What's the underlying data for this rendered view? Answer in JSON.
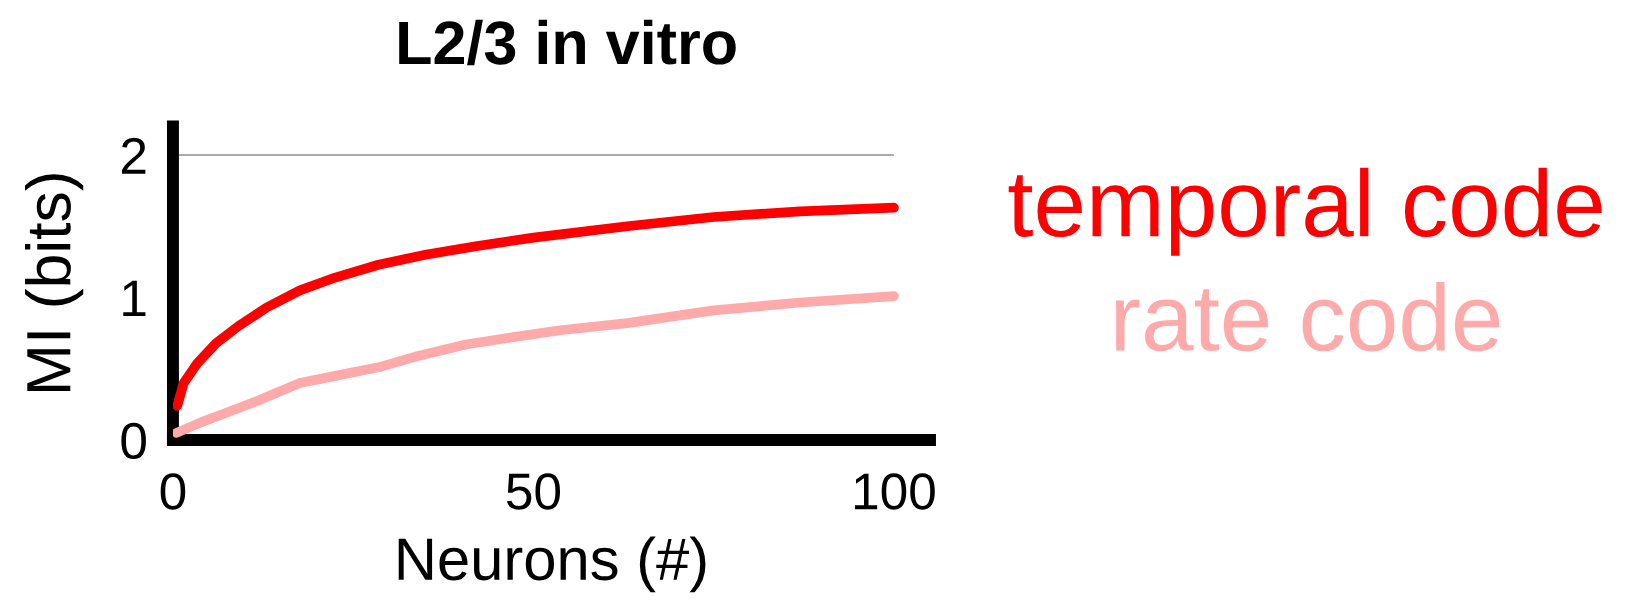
{
  "chart_data": {
    "type": "line",
    "title": "L2/3 in vitro",
    "xlabel": "Neurons (#)",
    "ylabel": "MI (bits)",
    "xlim": [
      0,
      105
    ],
    "ylim": [
      0,
      2.2
    ],
    "xticks": [
      0,
      50,
      100
    ],
    "yticks": [
      0,
      1,
      2
    ],
    "ref_lines": [
      {
        "axis": "y",
        "value": 2,
        "color": "#aaaaaa"
      }
    ],
    "series": [
      {
        "name": "temporal code",
        "color": "#ff0000",
        "x": [
          0.6,
          1.5,
          3.4,
          6,
          9.1,
          13,
          17.6,
          22.5,
          28.5,
          35,
          42,
          50,
          63,
          75,
          87,
          100
        ],
        "values": [
          0.24,
          0.4,
          0.54,
          0.68,
          0.8,
          0.93,
          1.05,
          1.14,
          1.23,
          1.3,
          1.36,
          1.42,
          1.5,
          1.565,
          1.605,
          1.63
        ]
      },
      {
        "name": "rate code",
        "color": "#ffaaaa",
        "x": [
          0.5,
          3.7,
          7.3,
          12,
          17.6,
          22.5,
          28.5,
          34,
          40.6,
          47,
          53.7,
          63,
          75,
          87,
          100
        ],
        "values": [
          0.05,
          0.12,
          0.19,
          0.28,
          0.4,
          0.45,
          0.51,
          0.59,
          0.67,
          0.72,
          0.77,
          0.82,
          0.91,
          0.965,
          1.01
        ]
      }
    ]
  }
}
